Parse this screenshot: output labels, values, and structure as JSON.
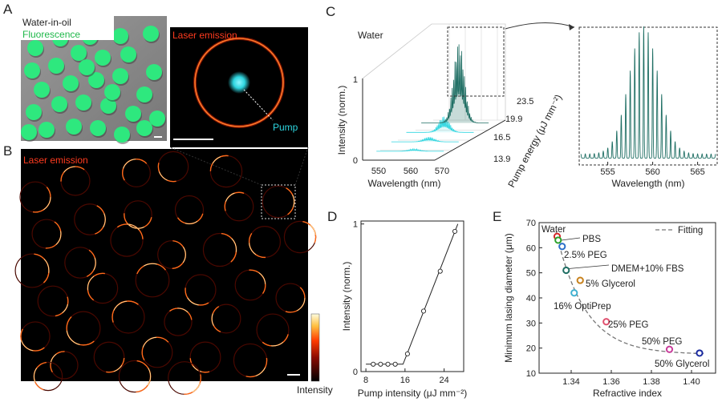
{
  "panel_labels": {
    "a": "A",
    "b": "B",
    "c": "C",
    "d": "D",
    "e": "E"
  },
  "panel_a": {
    "title": "Water-in-oil",
    "left_label": "Fluorescence",
    "right_label": "Laser emission",
    "pump_label": "Pump"
  },
  "panel_b": {
    "label": "Laser emission",
    "colorbar_label": "Intensity"
  },
  "colors": {
    "fluorescence": "#2ee87e",
    "laser": "#ff3b1f",
    "pump": "#2ed6e0",
    "spectrum": "#1e6e63",
    "fit_line": "#777777"
  },
  "chart_data": [
    {
      "id": "panel-c-3d",
      "type": "line",
      "title": "Water",
      "xlabel": "Wavelength (nm)",
      "ylabel": "Intensity (norm.)",
      "zlabel": "Pump energy (μJ mm⁻²)",
      "x_ticks": [
        "550",
        "560",
        "570"
      ],
      "y_ticks": [
        "0",
        "1"
      ],
      "z_ticks": [
        "13.9",
        "16.5",
        "19.9",
        "23.5"
      ],
      "series": [
        {
          "name": "13.9",
          "peak_intensity": 0.03
        },
        {
          "name": "16.5",
          "peak_intensity": 0.06
        },
        {
          "name": "19.9",
          "peak_intensity": 0.2
        },
        {
          "name": "23.5",
          "peak_intensity": 1.0
        }
      ]
    },
    {
      "id": "panel-c-zoom",
      "type": "line",
      "xlabel": "Wavelength (nm)",
      "xlim": [
        552,
        567
      ],
      "x_ticks": [
        "555",
        "560",
        "565"
      ],
      "center_wavelength": 559,
      "mode_spacing_nm": 0.5,
      "envelope_width_nm": 2.3
    },
    {
      "id": "panel-d",
      "type": "scatter",
      "xlabel": "Pump intensity (μJ mm⁻²)",
      "ylabel": "Intensity (norm.)",
      "xlim": [
        7,
        28
      ],
      "ylim": [
        0,
        1.02
      ],
      "x_ticks": [
        "8",
        "16",
        "24"
      ],
      "y_ticks": [
        "0",
        "1"
      ],
      "points": [
        [
          9.5,
          0.05
        ],
        [
          11,
          0.05
        ],
        [
          12.5,
          0.05
        ],
        [
          14,
          0.05
        ],
        [
          16.5,
          0.12
        ],
        [
          19.8,
          0.41
        ],
        [
          23.2,
          0.68
        ],
        [
          26.2,
          0.95
        ]
      ],
      "fit": [
        [
          8,
          0.05
        ],
        [
          15.6,
          0.05
        ],
        [
          26.8,
          1.0
        ]
      ]
    },
    {
      "id": "panel-e",
      "type": "scatter",
      "xlabel": "Refractive index",
      "ylabel": "Minimum lasing diameter (μm)",
      "xlim": [
        1.324,
        1.412
      ],
      "ylim": [
        10,
        70
      ],
      "x_ticks": [
        "1.34",
        "1.36",
        "1.38",
        "1.40"
      ],
      "y_ticks": [
        "10",
        "20",
        "30",
        "40",
        "50",
        "60",
        "70"
      ],
      "legend": "Fitting",
      "points": [
        {
          "label": "Water",
          "x": 1.333,
          "y": 64.5,
          "color": "#d42a2a"
        },
        {
          "label": "PBS",
          "x": 1.3335,
          "y": 63,
          "color": "#2aa02a"
        },
        {
          "label": "2.5% PEG",
          "x": 1.3355,
          "y": 60.5,
          "color": "#2a6ec8"
        },
        {
          "label": "DMEM+10% FBS",
          "x": 1.3375,
          "y": 51,
          "color": "#1f6e63"
        },
        {
          "label": "5% Glycerol",
          "x": 1.3445,
          "y": 47,
          "color": "#c8821e"
        },
        {
          "label": "16% OptiPrep",
          "x": 1.3415,
          "y": 42,
          "color": "#3fb0d0"
        },
        {
          "label": "25% PEG",
          "x": 1.3575,
          "y": 30.5,
          "color": "#e0506e"
        },
        {
          "label": "50% PEG",
          "x": 1.389,
          "y": 19.5,
          "color": "#c83c9a"
        },
        {
          "label": "50% Glycerol",
          "x": 1.404,
          "y": 18,
          "color": "#1a2aa0"
        }
      ]
    }
  ]
}
